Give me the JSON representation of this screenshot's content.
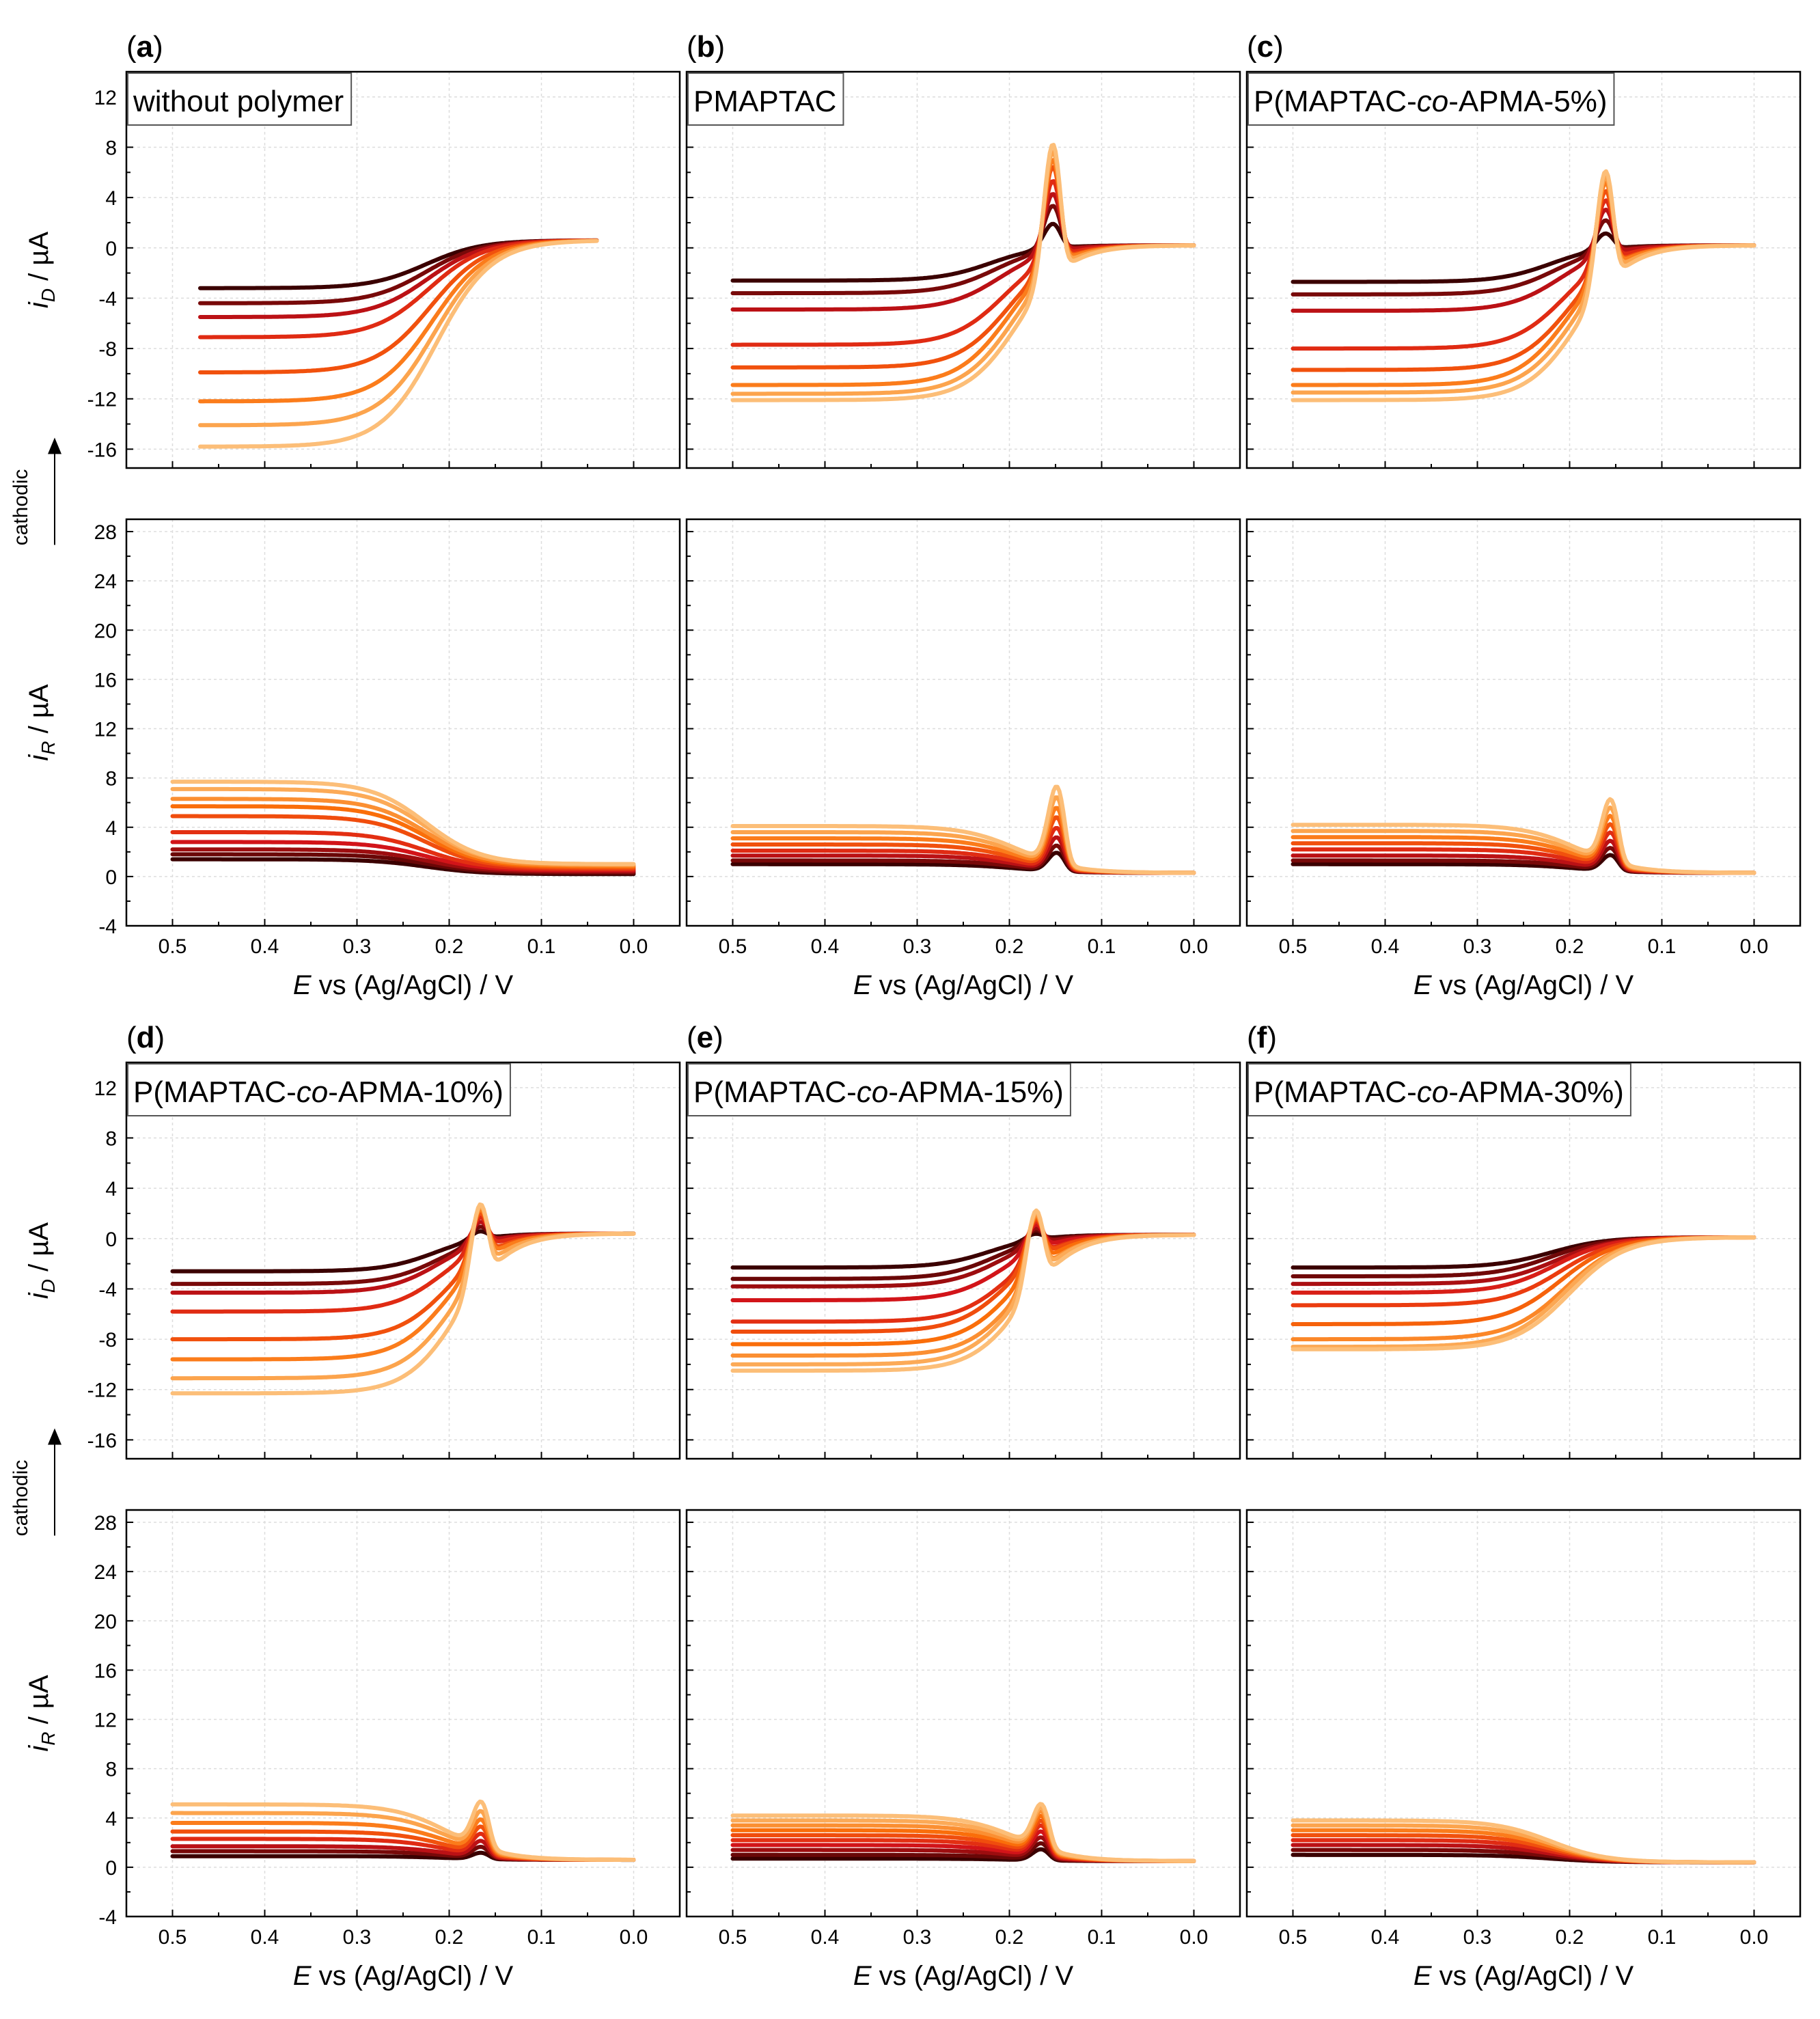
{
  "figure": {
    "panels": [
      {
        "letter": "a",
        "title": "without polymer",
        "title_parts": [
          "without polymer"
        ],
        "has_peak": false
      },
      {
        "letter": "b",
        "title": "PMAPTAC",
        "title_parts": [
          "PMAPTAC"
        ],
        "has_peak": true
      },
      {
        "letter": "c",
        "title": "P(MAPTAC-co-APMA-5%)",
        "title_parts": [
          "P(MAPTAC-",
          "co",
          "-APMA-5%)"
        ],
        "has_peak": true
      },
      {
        "letter": "d",
        "title": "P(MAPTAC-co-APMA-10%)",
        "title_parts": [
          "P(MAPTAC-",
          "co",
          "-APMA-10%)"
        ],
        "has_peak": true
      },
      {
        "letter": "e",
        "title": "P(MAPTAC-co-APMA-15%)",
        "title_parts": [
          "P(MAPTAC-",
          "co",
          "-APMA-15%)"
        ],
        "has_peak": true
      },
      {
        "letter": "f",
        "title": "P(MAPTAC-co-APMA-30%)",
        "title_parts": [
          "P(MAPTAC-",
          "co",
          "-APMA-30%)"
        ],
        "has_peak": false
      }
    ],
    "ylabel_top": {
      "main": "i",
      "sub": "D",
      "unit": " / µA"
    },
    "ylabel_bottom": {
      "main": "i",
      "sub": "R",
      "unit": " / µA"
    },
    "xlabel": {
      "main": "E",
      "rest": " vs (Ag/AgCl) / V"
    },
    "cathodic_label": "cathodic",
    "x_ticks": [
      "0.5",
      "0.4",
      "0.3",
      "0.2",
      "0.1",
      "0.0"
    ],
    "iD_ticks": [
      "12",
      "8",
      "4",
      "0",
      "-4",
      "-8",
      "-12",
      "-16"
    ],
    "iR_ticks": [
      "28",
      "24",
      "20",
      "16",
      "12",
      "8",
      "4",
      "0",
      "-4"
    ]
  },
  "chart_data": [
    {
      "type": "line",
      "panel": "a",
      "title": "without polymer",
      "x_range": [
        0.55,
        -0.05
      ],
      "x_start": 0.47,
      "x_end": 0.04,
      "iD": {
        "ylim": [
          -17.5,
          14
        ],
        "plateaus": [
          -3.2,
          -4.4,
          -5.5,
          -7.1,
          -9.9,
          -12.2,
          -14.1,
          -15.8
        ],
        "E_half": [
          0.225,
          0.225,
          0.223,
          0.222,
          0.22,
          0.218,
          0.216,
          0.214
        ],
        "width": 0.03,
        "end": 0.6
      },
      "iR": {
        "ylim": [
          -4,
          29
        ],
        "x_start": 0.5,
        "x_end": 0.0,
        "plateaus": [
          1.4,
          1.8,
          2.2,
          2.8,
          3.6,
          4.9,
          5.7,
          6.3,
          7.1,
          7.7
        ],
        "E_half": [
          0.225,
          0.225,
          0.225,
          0.225,
          0.225,
          0.225,
          0.225,
          0.225,
          0.225,
          0.225
        ],
        "width": 0.03,
        "end": [
          0.2,
          0.3,
          0.4,
          0.5,
          0.6,
          0.7,
          0.8,
          0.9,
          1.0,
          1.0
        ]
      }
    },
    {
      "type": "line",
      "panel": "b",
      "title": "PMAPTAC",
      "x_range": [
        0.55,
        -0.05
      ],
      "x_start": 0.5,
      "x_end": 0.0,
      "iD": {
        "ylim": [
          -17.5,
          14
        ],
        "plateaus": [
          -2.6,
          -3.6,
          -4.9,
          -7.7,
          -9.5,
          -10.9,
          -11.6,
          -12.1
        ],
        "E_half": [
          0.22,
          0.215,
          0.21,
          0.205,
          0.2,
          0.2,
          0.195,
          0.19
        ],
        "width": 0.028,
        "end": 0.2,
        "peaks": [
          2.0,
          3.5,
          4.5,
          5.6,
          6.8,
          7.4,
          8.1,
          8.7
        ],
        "peak_E": 0.152
      },
      "iR": {
        "ylim": [
          -4,
          29
        ],
        "plateaus": [
          1.0,
          1.3,
          1.7,
          2.1,
          2.6,
          3.1,
          3.6,
          4.1
        ],
        "E_half": [
          0.19,
          0.19,
          0.19,
          0.19,
          0.19,
          0.19,
          0.19,
          0.19
        ],
        "width": 0.03,
        "end": 0.3,
        "peaks": [
          2.0,
          2.6,
          3.3,
          4.1,
          5.0,
          5.8,
          6.7,
          7.6
        ],
        "peak_E": 0.148
      }
    },
    {
      "type": "line",
      "panel": "c",
      "title": "P(MAPTAC-co-APMA-5%)",
      "x_range": [
        0.55,
        -0.05
      ],
      "x_start": 0.5,
      "x_end": 0.0,
      "iD": {
        "ylim": [
          -17.5,
          14
        ],
        "plateaus": [
          -2.7,
          -3.7,
          -5.0,
          -8.0,
          -9.7,
          -10.9,
          -11.5,
          -12.1
        ],
        "E_half": [
          0.22,
          0.215,
          0.21,
          0.205,
          0.2,
          0.2,
          0.195,
          0.19
        ],
        "width": 0.028,
        "end": 0.2,
        "peaks": [
          1.2,
          2.3,
          3.2,
          4.0,
          4.8,
          5.5,
          6.0,
          6.5
        ],
        "peak_E": 0.16
      },
      "iR": {
        "ylim": [
          -4,
          29
        ],
        "plateaus": [
          1.0,
          1.3,
          1.7,
          2.2,
          2.7,
          3.2,
          3.7,
          4.2
        ],
        "E_half": [
          0.19,
          0.19,
          0.19,
          0.19,
          0.19,
          0.19,
          0.19,
          0.19
        ],
        "width": 0.03,
        "end": 0.3,
        "peaks": [
          1.8,
          2.4,
          3.0,
          3.7,
          4.4,
          5.1,
          5.8,
          6.5
        ],
        "peak_E": 0.155
      }
    },
    {
      "type": "line",
      "panel": "d",
      "title": "P(MAPTAC-co-APMA-10%)",
      "x_range": [
        0.55,
        -0.05
      ],
      "x_start": 0.5,
      "x_end": 0.0,
      "iD": {
        "ylim": [
          -17.5,
          14
        ],
        "plateaus": [
          -2.6,
          -3.6,
          -4.3,
          -5.8,
          -8.0,
          -9.6,
          -11.1,
          -12.3
        ],
        "E_half": [
          0.215,
          0.21,
          0.21,
          0.205,
          0.2,
          0.2,
          0.195,
          0.19
        ],
        "width": 0.028,
        "end": 0.4,
        "peaks": [
          0.6,
          1.0,
          1.4,
          1.8,
          2.2,
          2.5,
          2.8,
          3.0
        ],
        "peak_E": 0.165
      },
      "iR": {
        "ylim": [
          -4,
          29
        ],
        "plateaus": [
          0.9,
          1.3,
          1.7,
          2.3,
          2.9,
          3.6,
          4.4,
          5.1
        ],
        "E_half": [
          0.2,
          0.2,
          0.2,
          0.2,
          0.2,
          0.2,
          0.2,
          0.2
        ],
        "width": 0.03,
        "end": 0.6,
        "peaks": [
          1.2,
          1.7,
          2.2,
          2.8,
          3.4,
          4.0,
          4.7,
          5.5
        ],
        "peak_E": 0.165
      }
    },
    {
      "type": "line",
      "panel": "e",
      "title": "P(MAPTAC-co-APMA-15%)",
      "x_range": [
        0.55,
        -0.05
      ],
      "x_start": 0.5,
      "x_end": 0.0,
      "iD": {
        "ylim": [
          -17.5,
          14
        ],
        "plateaus": [
          -2.3,
          -3.2,
          -3.8,
          -4.9,
          -6.6,
          -7.4,
          -8.4,
          -9.3,
          -10.0,
          -10.5
        ],
        "E_half": [
          0.22,
          0.215,
          0.21,
          0.205,
          0.2,
          0.2,
          0.195,
          0.19,
          0.19,
          0.185
        ],
        "width": 0.028,
        "end": 0.3,
        "peaks": [
          0.4,
          0.7,
          0.9,
          1.2,
          1.5,
          1.7,
          1.9,
          2.1,
          2.3,
          2.5
        ],
        "peak_E": 0.17
      },
      "iR": {
        "ylim": [
          -4,
          29
        ],
        "plateaus": [
          0.7,
          1.0,
          1.4,
          1.8,
          2.2,
          2.6,
          3.0,
          3.4,
          3.8,
          4.2
        ],
        "E_half": [
          0.19,
          0.19,
          0.19,
          0.19,
          0.19,
          0.19,
          0.19,
          0.19,
          0.19,
          0.19
        ],
        "width": 0.03,
        "end": 0.5,
        "peaks": [
          1.5,
          2.0,
          2.5,
          3.0,
          3.5,
          3.9,
          4.3,
          4.7,
          5.0,
          5.3
        ],
        "peak_E": 0.165
      }
    },
    {
      "type": "line",
      "panel": "f",
      "title": "P(MAPTAC-co-APMA-30%)",
      "x_range": [
        0.55,
        -0.05
      ],
      "x_start": 0.5,
      "x_end": 0.0,
      "iD": {
        "ylim": [
          -17.5,
          14
        ],
        "plateaus": [
          -2.3,
          -3.0,
          -3.6,
          -4.3,
          -5.3,
          -6.8,
          -8.0,
          -8.6,
          -8.8
        ],
        "E_half": [
          0.22,
          0.22,
          0.215,
          0.215,
          0.21,
          0.21,
          0.205,
          0.205,
          0.2
        ],
        "width": 0.03,
        "end": 0.1
      },
      "iR": {
        "ylim": [
          -4,
          29
        ],
        "plateaus": [
          1.0,
          1.4,
          1.8,
          2.2,
          2.6,
          3.0,
          3.4,
          3.8
        ],
        "E_half": [
          0.22,
          0.22,
          0.22,
          0.22,
          0.22,
          0.22,
          0.22,
          0.22
        ],
        "width": 0.03,
        "end": 0.4
      }
    }
  ]
}
